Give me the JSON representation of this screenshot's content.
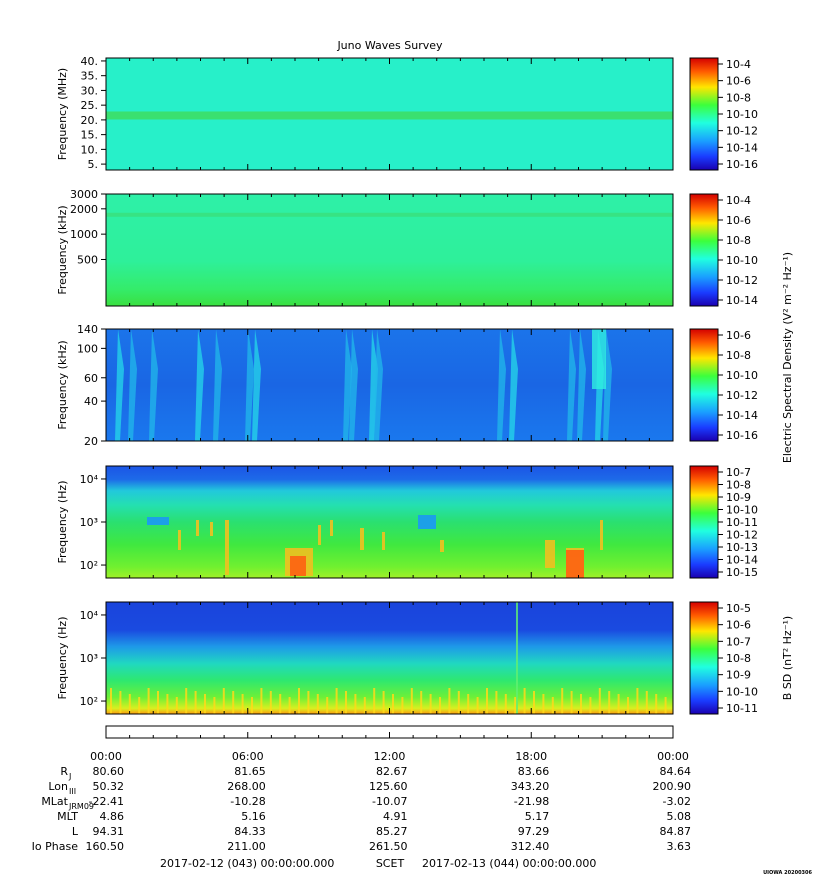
{
  "title": "Juno Waves Survey",
  "footer_tag": "UIOWA 20200306",
  "colors": {
    "bg_mhz": "#27f0c9",
    "bg_khz": "#2ef09a",
    "bg_khz_low": "#2fe060",
    "bg_lowkhz": "#1a6ee8",
    "bg_hz_top": "#1c5be6",
    "bg_hz_mid": "#28e070",
    "bg_hz_low": "#5bf030",
    "bg_bsd_top": "#1a50e0",
    "bg_bsd_mid": "#20d0b0",
    "bg_bsd_low": "#3cf050"
  },
  "chart_data": [
    {
      "type": "heatmap",
      "panel": "mhz",
      "ylabel": "Frequency (MHz)",
      "yticks": [
        "40.",
        "35.",
        "30.",
        "25.",
        "20.",
        "15.",
        "10.",
        "5."
      ],
      "ytick_values": [
        40,
        35,
        30,
        25,
        20,
        15,
        10,
        5
      ],
      "ylim": [
        3,
        41
      ],
      "band_mhz": 21.5,
      "colorbar": {
        "labels": [
          "10-4",
          "10-6",
          "10-8",
          "10-10",
          "10-12",
          "10-14",
          "10-16"
        ],
        "exponents": [
          -4,
          -6,
          -8,
          -10,
          -12,
          -14,
          -16
        ]
      }
    },
    {
      "type": "heatmap",
      "panel": "khz",
      "ylabel": "Frequency (kHz)",
      "yticks": [
        "3000",
        "2000",
        "1000",
        "500"
      ],
      "ytick_values": [
        3000,
        2000,
        1000,
        500
      ],
      "ylim": [
        140,
        3000
      ],
      "scale": "log",
      "band_khz": 1700,
      "colorbar": {
        "labels": [
          "10-4",
          "10-6",
          "10-8",
          "10-10",
          "10-12",
          "10-14"
        ],
        "exponents": [
          -4,
          -6,
          -8,
          -10,
          -12,
          -14
        ]
      }
    },
    {
      "type": "heatmap",
      "panel": "lowkhz",
      "ylabel": "Frequency (kHz)",
      "yticks": [
        "140",
        "100",
        "60",
        "40",
        "20"
      ],
      "ytick_values": [
        140,
        100,
        60,
        40,
        20
      ],
      "ylim": [
        20,
        140
      ],
      "scale": "log",
      "colorbar": {
        "labels": [
          "10-6",
          "10-8",
          "10-10",
          "10-12",
          "10-14",
          "10-16"
        ],
        "exponents": [
          -6,
          -8,
          -10,
          -12,
          -14,
          -16
        ]
      },
      "shared_label": "Electric Spectral Density (V² m⁻² Hz⁻¹)"
    },
    {
      "type": "heatmap",
      "panel": "ehz",
      "ylabel": "Frequency (Hz)",
      "yticks": [
        "10⁴",
        "10³",
        "10²"
      ],
      "ytick_values": [
        10000,
        1000,
        100
      ],
      "ylim": [
        50,
        20000
      ],
      "scale": "log",
      "colorbar": {
        "labels": [
          "10-7",
          "10-8",
          "10-9",
          "10-10",
          "10-11",
          "10-12",
          "10-13",
          "10-14",
          "10-15"
        ],
        "exponents": [
          -7,
          -8,
          -9,
          -10,
          -11,
          -12,
          -13,
          -14,
          -15
        ]
      }
    },
    {
      "type": "heatmap",
      "panel": "bhz",
      "ylabel": "Frequency (Hz)",
      "yticks": [
        "10⁴",
        "10³",
        "10²"
      ],
      "ytick_values": [
        10000,
        1000,
        100
      ],
      "ylim": [
        50,
        20000
      ],
      "scale": "log",
      "colorbar": {
        "labels": [
          "10-5",
          "10-6",
          "10-7",
          "10-8",
          "10-9",
          "10-10",
          "10-11"
        ],
        "exponents": [
          -5,
          -6,
          -7,
          -8,
          -9,
          -10,
          -11
        ]
      },
      "cbar_label": "B SD (nT² Hz⁻¹)"
    }
  ],
  "time_axis": {
    "ticks": [
      "00:00",
      "06:00",
      "12:00",
      "18:00",
      "00:00"
    ],
    "tick_hours": [
      0,
      6,
      12,
      18,
      24
    ]
  },
  "ephemeris": {
    "labels": [
      "R",
      "Lon",
      "MLat",
      "MLT",
      "L",
      "Io Phase"
    ],
    "label_subs": [
      "J",
      "III",
      "JRM09",
      "",
      "",
      ""
    ],
    "rows": [
      [
        "80.60",
        "81.65",
        "82.67",
        "83.66",
        "84.64"
      ],
      [
        "50.32",
        "268.00",
        "125.60",
        "343.20",
        "200.90"
      ],
      [
        "-22.41",
        "-10.28",
        "-10.07",
        "-21.98",
        "-3.02"
      ],
      [
        "4.86",
        "5.16",
        "4.91",
        "5.17",
        "5.08"
      ],
      [
        "94.31",
        "84.33",
        "85.27",
        "97.29",
        "84.87"
      ],
      [
        "160.50",
        "211.00",
        "261.50",
        "312.40",
        "3.63"
      ]
    ]
  },
  "scet": {
    "start": "2017-02-12 (043) 00:00:00.000",
    "label": "SCET",
    "end": "2017-02-13 (044) 00:00:00.000"
  }
}
